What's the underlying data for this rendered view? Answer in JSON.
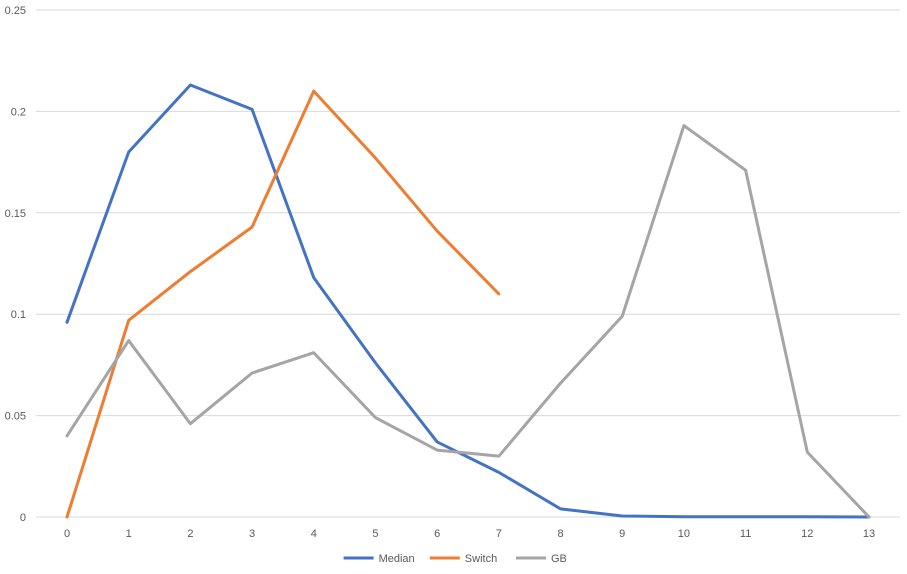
{
  "chart_data": {
    "type": "line",
    "x": [
      0,
      1,
      2,
      3,
      4,
      5,
      6,
      7,
      8,
      9,
      10,
      11,
      12,
      13
    ],
    "ylim": [
      0,
      0.25
    ],
    "yticks": [
      "0",
      "0.05",
      "0.1",
      "0.15",
      "0.2",
      "0.25"
    ],
    "xticks": [
      "0",
      "1",
      "2",
      "3",
      "4",
      "5",
      "6",
      "7",
      "8",
      "9",
      "10",
      "11",
      "12",
      "13"
    ],
    "grid": true,
    "legend_position": "bottom",
    "series": [
      {
        "name": "Median",
        "color": "#4472C4",
        "values": [
          0.096,
          0.18,
          0.213,
          0.201,
          0.118,
          0.076,
          0.037,
          0.022,
          0.004,
          0.0005,
          0.0001,
          0.0001,
          0.0001,
          0.0
        ]
      },
      {
        "name": "Switch",
        "color": "#ED7D31",
        "values": [
          0.0,
          0.097,
          0.121,
          0.143,
          0.21,
          0.177,
          0.141,
          0.11,
          null,
          null,
          null,
          null,
          null,
          null
        ]
      },
      {
        "name": "GB",
        "color": "#A5A5A5",
        "values": [
          0.04,
          0.087,
          0.046,
          0.071,
          0.081,
          0.049,
          0.033,
          0.03,
          0.066,
          0.099,
          0.193,
          0.171,
          0.032,
          0.0
        ]
      }
    ]
  }
}
